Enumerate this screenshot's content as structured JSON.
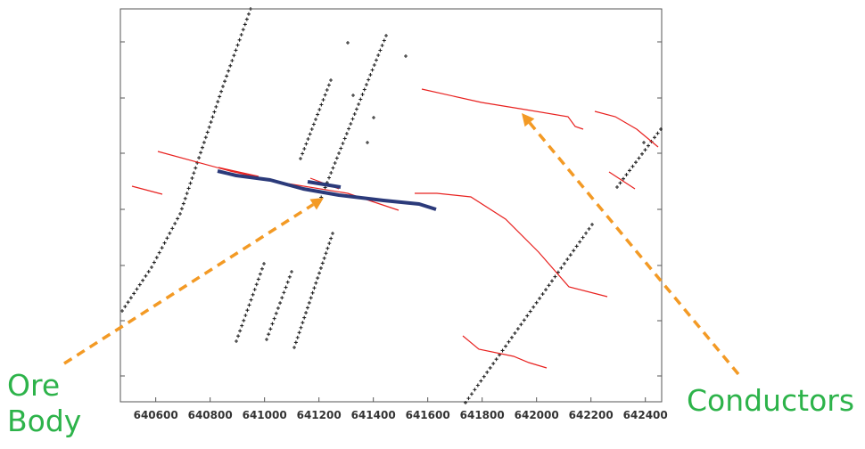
{
  "colors": {
    "conductor": "#e8211f",
    "ore_body": "#2b3a7a",
    "station": "#222222",
    "callout": "#2db34a",
    "arrow": "#f39a25"
  },
  "labels": {
    "ore_body_line1": "Ore",
    "ore_body_line2": "Body",
    "conductors": "Conductors"
  },
  "x_axis": {
    "ticks": [
      "640600",
      "640800",
      "641000",
      "641200",
      "641400",
      "641600",
      "641800",
      "642000",
      "642200",
      "642400"
    ],
    "tick_values": [
      640600,
      640800,
      641000,
      641200,
      641400,
      641600,
      641800,
      642000,
      642200,
      642400
    ],
    "range": [
      640470,
      642460
    ]
  },
  "y_axis": {
    "tick_count": 7,
    "labels_visible": false
  },
  "map_data": {
    "type": "geophysical survey plan",
    "station_symbol": "+",
    "survey_lines": 7,
    "conductors": 9,
    "ore_body": 2,
    "callout_arrows": 2
  }
}
